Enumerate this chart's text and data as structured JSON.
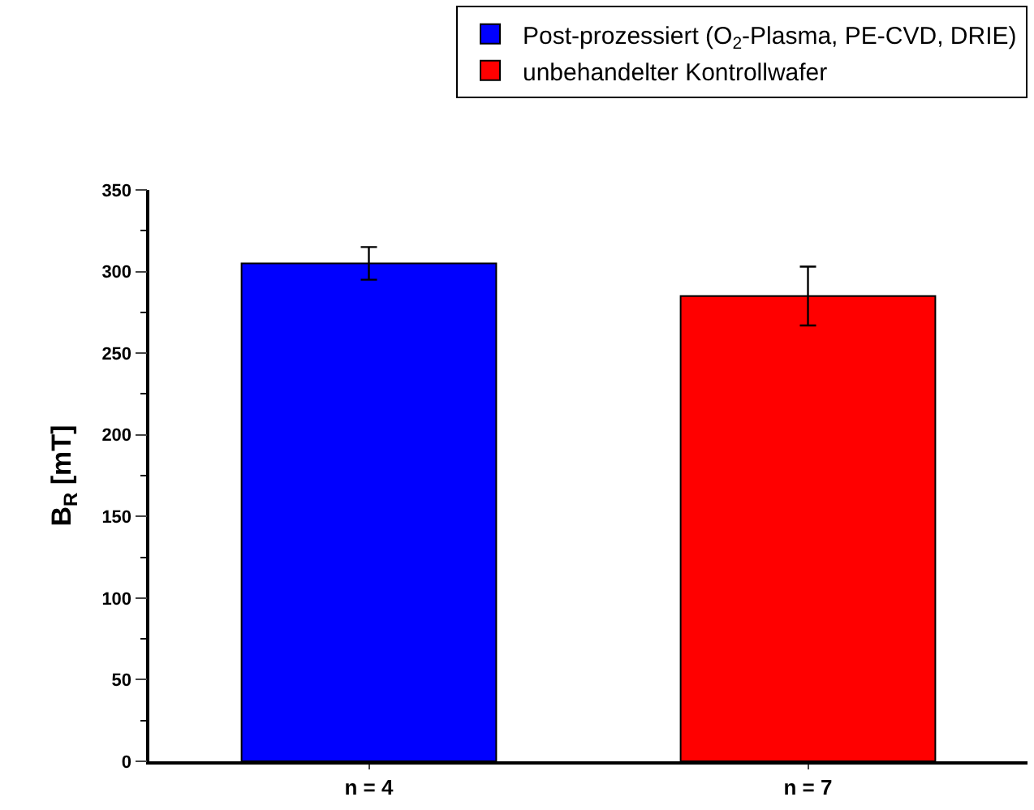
{
  "chart_data": {
    "type": "bar",
    "ylabel": "B$_{R}$ [mT]",
    "categories": [
      "n = 4",
      "n = 7"
    ],
    "series": [
      {
        "name": "Post-prozessiert (O$_{2}$-Plasma, PE-CVD, DRIE)",
        "color": "#0000ff",
        "values": [
          305,
          null
        ],
        "errors": [
          10,
          null
        ]
      },
      {
        "name": "unbehandelter Kontrollwafer",
        "color": "#ff0000",
        "values": [
          null,
          285
        ],
        "errors": [
          null,
          18
        ]
      }
    ],
    "ylim": [
      0,
      350
    ],
    "yticks": [
      0,
      50,
      100,
      150,
      200,
      250,
      300,
      350
    ],
    "grid": false,
    "legend": "top right"
  }
}
